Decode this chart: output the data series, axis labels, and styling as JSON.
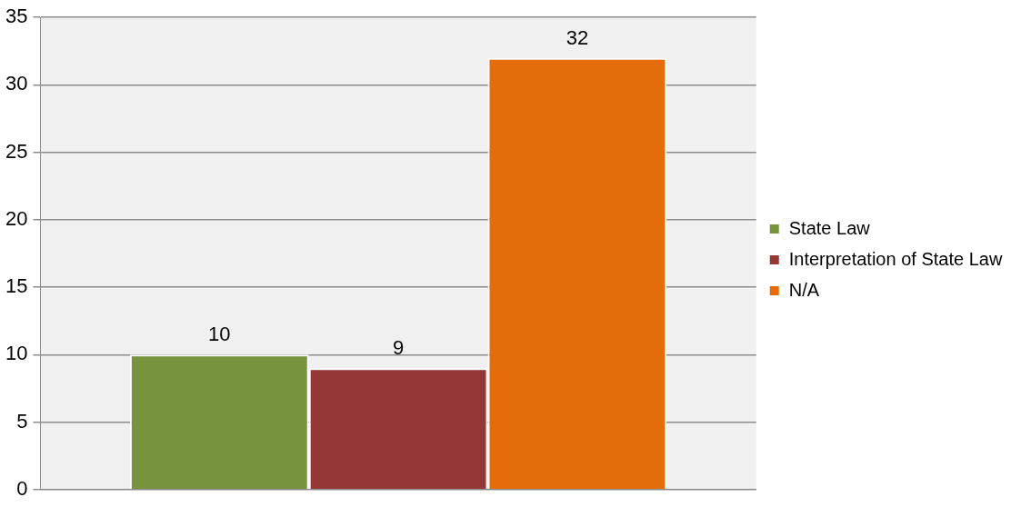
{
  "chart_data": {
    "type": "bar",
    "categories": [
      null
    ],
    "series": [
      {
        "name": "State Law",
        "color": "#77933c",
        "values": [
          10
        ]
      },
      {
        "name": "Interpretation of State Law",
        "color": "#953735",
        "values": [
          9
        ]
      },
      {
        "name": "N/A",
        "color": "#e46c0a",
        "values": [
          32
        ]
      }
    ],
    "ylim": [
      0,
      35
    ],
    "yticks": [
      0,
      5,
      10,
      15,
      20,
      25,
      30,
      35
    ],
    "grid": "y",
    "legend": "right",
    "data_labels": true
  }
}
